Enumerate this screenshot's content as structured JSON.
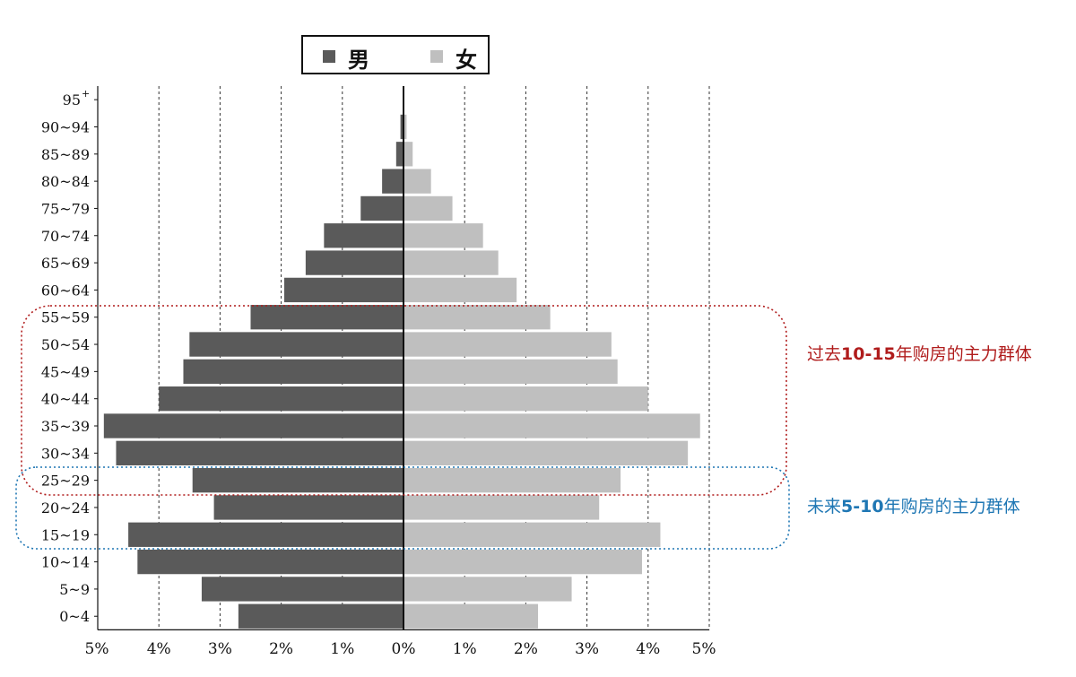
{
  "legend": {
    "male": "男",
    "female": "女"
  },
  "annotations": {
    "past": {
      "prefix": "过去",
      "highlight": "10-15",
      "suffix": "年购房的主力群体"
    },
    "future": {
      "prefix": "未来",
      "highlight": "5-10",
      "suffix": "年购房的主力群体"
    }
  },
  "colors": {
    "male": "#5a5a5a",
    "female": "#bfbfbf",
    "past_box": "#b01c1c",
    "future_box": "#1f77b4"
  },
  "chart_data": {
    "type": "bar",
    "orientation": "horizontal",
    "categories": [
      "0~4",
      "5~9",
      "10~14",
      "15~19",
      "20~24",
      "25~29",
      "30~34",
      "35~39",
      "40~44",
      "45~49",
      "50~54",
      "55~59",
      "60~64",
      "65~69",
      "70~74",
      "75~79",
      "80~84",
      "85~89",
      "90~94",
      "95"
    ],
    "top_label_superscript": "+",
    "series": [
      {
        "name": "男",
        "values": [
          2.7,
          3.3,
          4.35,
          4.5,
          3.1,
          3.45,
          4.7,
          4.9,
          4.0,
          3.6,
          3.5,
          2.5,
          1.95,
          1.6,
          1.3,
          0.7,
          0.35,
          0.12,
          0.05,
          0.01
        ]
      },
      {
        "name": "女",
        "values": [
          2.2,
          2.75,
          3.9,
          4.2,
          3.2,
          3.55,
          4.65,
          4.85,
          4.0,
          3.5,
          3.4,
          2.4,
          1.85,
          1.55,
          1.3,
          0.8,
          0.45,
          0.15,
          0.05,
          0.01
        ]
      }
    ],
    "xticks": [
      "5%",
      "4%",
      "3%",
      "2%",
      "1%",
      "0%",
      "1%",
      "2%",
      "3%",
      "4%",
      "5%"
    ],
    "xlim": [
      -5,
      5
    ],
    "grid": "vertical dashed",
    "legend_position": "top"
  }
}
